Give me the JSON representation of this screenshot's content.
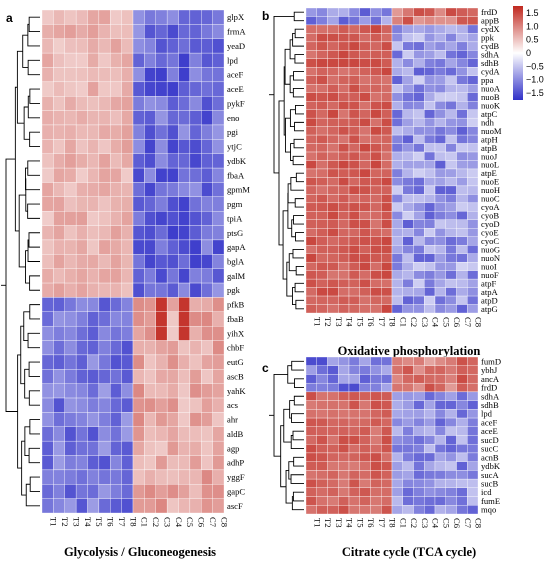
{
  "chart_data": [
    {
      "type": "heatmap",
      "panel": "a",
      "title": "Glycolysis / Gluconeogenesis",
      "columns": [
        "T1",
        "T2",
        "T3",
        "T4",
        "T5",
        "T6",
        "T7",
        "T8",
        "C1",
        "C2",
        "C3",
        "C4",
        "C5",
        "C6",
        "C7",
        "C8"
      ],
      "rows": [
        "glpX",
        "frmA",
        "yeaD",
        "lpd",
        "aceF",
        "aceE",
        "pykF",
        "eno",
        "pgi",
        "ytjC",
        "ydbK",
        "fbaA",
        "gpmM",
        "pgm",
        "tpiA",
        "ptsG",
        "gapA",
        "bglA",
        "galM",
        "pgk",
        "pfkB",
        "fbaB",
        "yihX",
        "chbF",
        "eutG",
        "ascB",
        "yahK",
        "acs",
        "ahr",
        "aldB",
        "agp",
        "adhP",
        "yggF",
        "gapC",
        "ascF"
      ]
    },
    {
      "type": "heatmap",
      "panel": "b",
      "title": "Oxidative phosphorylation",
      "columns": [
        "T1",
        "T2",
        "T3",
        "T4",
        "T5",
        "T6",
        "T7",
        "T8",
        "C1",
        "C2",
        "C3",
        "C4",
        "C5",
        "C6",
        "C7",
        "C8"
      ],
      "rows": [
        "frdD",
        "appB",
        "cydX",
        "ppk",
        "cydB",
        "sdhA",
        "sdhB",
        "cydA",
        "ppa",
        "nuoA",
        "nuoB",
        "nuoK",
        "atpC",
        "ndh",
        "nuoM",
        "atpH",
        "atpB",
        "nuoJ",
        "nuoL",
        "atpE",
        "nuoE",
        "nuoH",
        "nuoC",
        "cyoA",
        "cyoB",
        "cyoD",
        "cyoE",
        "cyoC",
        "nuoG",
        "nuoN",
        "nuoI",
        "nuoF",
        "atpF",
        "atpA",
        "atpD",
        "atpG"
      ],
      "colorbar": {
        "ticks": [
          "1.5",
          "1.0",
          "0.5",
          "0",
          "−0.5",
          "−1.0",
          "−1.5"
        ],
        "range": [
          -1.5,
          1.5
        ],
        "high_color": "#c0281f",
        "mid_color": "#ffffff",
        "low_color": "#3131c8"
      }
    },
    {
      "type": "heatmap",
      "panel": "c",
      "title": "Citrate cycle (TCA cycle)",
      "columns": [
        "T1",
        "T2",
        "T3",
        "T4",
        "T5",
        "T6",
        "T7",
        "T8",
        "C1",
        "C2",
        "C3",
        "C4",
        "C5",
        "C6",
        "C7",
        "C8"
      ],
      "rows": [
        "fumD",
        "ybhJ",
        "ancA",
        "frdD",
        "sdhA",
        "sdhB",
        "lpd",
        "aceF",
        "aceE",
        "sucD",
        "sucC",
        "acnB",
        "ydbK",
        "sucA",
        "sucB",
        "icd",
        "fumE",
        "mqo"
      ]
    }
  ]
}
